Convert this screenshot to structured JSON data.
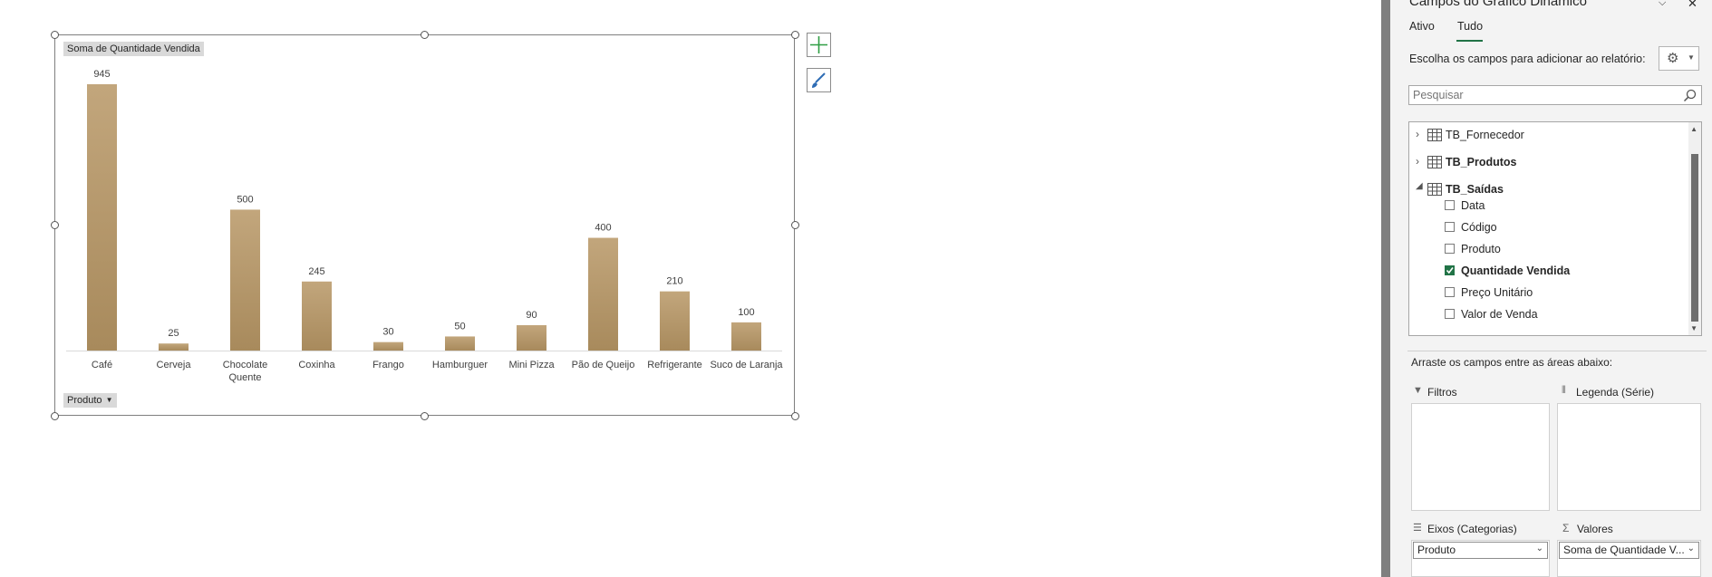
{
  "chart": {
    "value_field_button": "Soma de Quantidade Vendida",
    "axis_field_button": "Produto"
  },
  "chart_data": {
    "type": "bar",
    "categories": [
      "Café",
      "Cerveja",
      "Chocolate Quente",
      "Coxinha",
      "Frango",
      "Hamburguer",
      "Mini Pizza",
      "Pão de Queijo",
      "Refrigerante",
      "Suco de Laranja"
    ],
    "category_lines": [
      [
        "Café"
      ],
      [
        "Cerveja"
      ],
      [
        "Chocolate",
        "Quente"
      ],
      [
        "Coxinha"
      ],
      [
        "Frango"
      ],
      [
        "Hamburguer"
      ],
      [
        "Mini Pizza"
      ],
      [
        "Pão de Queijo"
      ],
      [
        "Refrigerante"
      ],
      [
        "Suco de Laranja"
      ]
    ],
    "values": [
      945,
      25,
      500,
      245,
      30,
      50,
      90,
      400,
      210,
      100
    ],
    "ylim": [
      0,
      1000
    ],
    "bar_color": "#a88a5c",
    "grid": false,
    "legend": "none"
  },
  "panel": {
    "title": "Campos do Gráfico Dinâmico",
    "tabs": [
      "Ativo",
      "Tudo"
    ],
    "active_tab": "Tudo",
    "choose_label": "Escolha os campos para adicionar ao relatório:",
    "search_placeholder": "Pesquisar",
    "tables": [
      {
        "name": "TB_Fornecedor",
        "expanded": false,
        "bold": false
      },
      {
        "name": "TB_Produtos",
        "expanded": false,
        "bold": true
      },
      {
        "name": "TB_Saídas",
        "expanded": true,
        "bold": true
      }
    ],
    "fields": [
      {
        "label": "Data",
        "checked": false
      },
      {
        "label": "Código",
        "checked": false
      },
      {
        "label": "Produto",
        "checked": false
      },
      {
        "label": "Quantidade Vendida",
        "checked": true
      },
      {
        "label": "Preço Unitário",
        "checked": false
      },
      {
        "label": "Valor de Venda",
        "checked": false
      }
    ],
    "drag_label": "Arraste os campos entre as áreas abaixo:",
    "areas": {
      "filters": "Filtros",
      "legend": "Legenda (Série)",
      "axes": "Eixos (Categorias)",
      "values": "Valores"
    },
    "axes_value": "Produto",
    "values_value": "Soma de Quantidade V...",
    "accent_color": "#217346"
  }
}
